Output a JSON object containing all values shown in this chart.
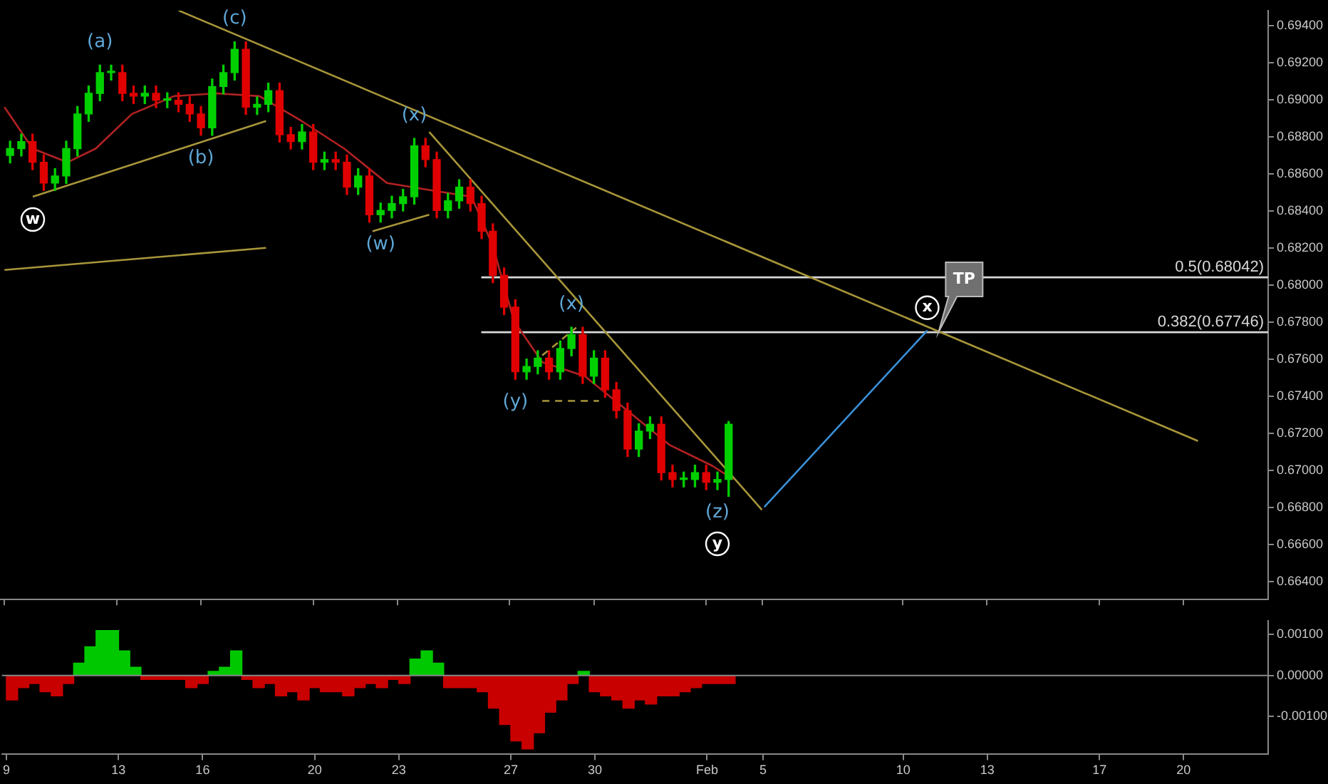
{
  "chart_data": [
    {
      "type": "candlestick",
      "x": [
        "--01-09T04:48",
        "--01-09T14:24",
        "--01-10T00:00",
        "--01-10T09:36",
        "--01-10T19:12",
        "--01-11T04:48",
        "--01-11T14:24",
        "--01-12T00:00",
        "--01-12T09:36",
        "--01-12T19:12",
        "--01-13T04:48",
        "--01-13T14:24",
        "--01-14T00:00",
        "--01-14T09:36",
        "--01-14T19:12",
        "--01-15T04:48",
        "--01-15T14:24",
        "--01-16T00:00",
        "--01-16T09:36",
        "--01-16T19:12",
        "--01-17T04:48",
        "--01-17T14:24",
        "--01-18T00:00",
        "--01-18T09:36",
        "--01-18T19:12",
        "--01-19T04:48",
        "--01-19T14:24",
        "--01-20T00:00",
        "--01-20T09:36",
        "--01-20T19:12",
        "--01-21T04:48",
        "--01-21T14:24",
        "--01-22T00:00",
        "--01-22T09:36",
        "--01-22T19:12",
        "--01-23T04:48",
        "--01-23T14:24",
        "--01-24T00:00",
        "--01-24T09:36",
        "--01-24T19:12",
        "--01-25T04:48",
        "--01-25T14:24",
        "--01-26T00:00",
        "--01-26T09:36",
        "--01-26T19:12",
        "--01-27T04:48",
        "--01-27T14:24",
        "--01-28T00:00",
        "--01-28T09:36",
        "--01-28T19:12",
        "--01-29T04:48",
        "--01-29T14:24",
        "--01-30T00:00",
        "--01-30T09:36",
        "--01-30T19:12",
        "--01-31T04:48",
        "--01-31T14:24",
        "--02-01T00:00",
        "--02-01T09:36",
        "--02-01T19:12",
        "--02-02T04:48",
        "--02-02T14:24",
        "--02-03T00:00",
        "--02-03T09:36",
        "--02-03T19:12"
      ],
      "ohlc": [
        [
          0.687,
          0.68777,
          0.6866,
          0.68737
        ],
        [
          0.68737,
          0.68815,
          0.68697,
          0.68775
        ],
        [
          0.68775,
          0.68815,
          0.68623,
          0.68663
        ],
        [
          0.68663,
          0.68703,
          0.68511,
          0.68551
        ],
        [
          0.68551,
          0.68629,
          0.68511,
          0.68589
        ],
        [
          0.68589,
          0.68777,
          0.68549,
          0.68737
        ],
        [
          0.68737,
          0.68964,
          0.68697,
          0.68924
        ],
        [
          0.68924,
          0.69075,
          0.68884,
          0.69035
        ],
        [
          0.69035,
          0.69187,
          0.68995,
          0.69147
        ],
        [
          0.69147,
          0.69187,
          0.69107,
          0.69147
        ],
        [
          0.69147,
          0.69187,
          0.68995,
          0.69035
        ],
        [
          0.69035,
          0.69075,
          0.6898,
          0.6902
        ],
        [
          0.6902,
          0.69075,
          0.6898,
          0.69035
        ],
        [
          0.69035,
          0.69075,
          0.68958,
          0.68998
        ],
        [
          0.68998,
          0.69038,
          0.68958,
          0.68998
        ],
        [
          0.68998,
          0.69038,
          0.68936,
          0.68976
        ],
        [
          0.68976,
          0.69016,
          0.68884,
          0.68924
        ],
        [
          0.68924,
          0.68964,
          0.68809,
          0.68849
        ],
        [
          0.68849,
          0.69112,
          0.68809,
          0.69072
        ],
        [
          0.69072,
          0.69187,
          0.69032,
          0.69147
        ],
        [
          0.69147,
          0.69313,
          0.69107,
          0.69273
        ],
        [
          0.69273,
          0.69313,
          0.68921,
          0.68961
        ],
        [
          0.68961,
          0.69016,
          0.68921,
          0.68976
        ],
        [
          0.68976,
          0.6909,
          0.68936,
          0.6905
        ],
        [
          0.6905,
          0.6909,
          0.68772,
          0.68812
        ],
        [
          0.68812,
          0.68852,
          0.68735,
          0.68775
        ],
        [
          0.68775,
          0.68867,
          0.68735,
          0.68827
        ],
        [
          0.68827,
          0.68867,
          0.68623,
          0.68663
        ],
        [
          0.68663,
          0.68718,
          0.68623,
          0.68678
        ],
        [
          0.68678,
          0.68718,
          0.68623,
          0.68663
        ],
        [
          0.68663,
          0.68703,
          0.68489,
          0.68529
        ],
        [
          0.68529,
          0.68629,
          0.68489,
          0.68589
        ],
        [
          0.68589,
          0.68629,
          0.6834,
          0.6838
        ],
        [
          0.6838,
          0.68443,
          0.6834,
          0.68403
        ],
        [
          0.68403,
          0.6848,
          0.68363,
          0.6844
        ],
        [
          0.6844,
          0.68517,
          0.684,
          0.68477
        ],
        [
          0.68477,
          0.68792,
          0.68437,
          0.68752
        ],
        [
          0.68752,
          0.68792,
          0.68638,
          0.68678
        ],
        [
          0.68678,
          0.68718,
          0.68363,
          0.68403
        ],
        [
          0.68403,
          0.68495,
          0.68363,
          0.68455
        ],
        [
          0.68455,
          0.68569,
          0.68415,
          0.68529
        ],
        [
          0.68529,
          0.68569,
          0.684,
          0.6844
        ],
        [
          0.6844,
          0.6848,
          0.68251,
          0.68291
        ],
        [
          0.68291,
          0.68331,
          0.68013,
          0.68053
        ],
        [
          0.68053,
          0.68093,
          0.67841,
          0.67881
        ],
        [
          0.67881,
          0.67921,
          0.67492,
          0.67532
        ],
        [
          0.67532,
          0.67601,
          0.67492,
          0.67561
        ],
        [
          0.67561,
          0.67646,
          0.67521,
          0.67606
        ],
        [
          0.67606,
          0.67646,
          0.67492,
          0.67532
        ],
        [
          0.67532,
          0.67698,
          0.67492,
          0.67658
        ],
        [
          0.67658,
          0.67773,
          0.67618,
          0.67733
        ],
        [
          0.67733,
          0.67773,
          0.67469,
          0.67509
        ],
        [
          0.67509,
          0.67646,
          0.67469,
          0.67606
        ],
        [
          0.67606,
          0.67646,
          0.67395,
          0.67435
        ],
        [
          0.67435,
          0.67475,
          0.67283,
          0.67323
        ],
        [
          0.67323,
          0.67363,
          0.67075,
          0.67115
        ],
        [
          0.67115,
          0.67252,
          0.67075,
          0.67212
        ],
        [
          0.67212,
          0.67289,
          0.67172,
          0.67249
        ],
        [
          0.67249,
          0.67289,
          0.66948,
          0.66988
        ],
        [
          0.66988,
          0.67028,
          0.66911,
          0.66951
        ],
        [
          0.66951,
          0.66991,
          0.66911,
          0.66951
        ],
        [
          0.66951,
          0.67028,
          0.66911,
          0.66988
        ],
        [
          0.66988,
          0.67028,
          0.66896,
          0.66936
        ],
        [
          0.66936,
          0.66991,
          0.66896,
          0.66951
        ],
        [
          0.66951,
          0.67264,
          0.6686,
          0.67249
        ]
      ],
      "series": [
        {
          "type": "line",
          "color": "#b22222",
          "x": [
            "--01-09T00:00",
            "--01-10T00:00",
            "--01-11T06:00",
            "--01-12T06:00",
            "--01-13T13:00",
            "--01-15T01:00",
            "--01-16T13:30",
            "--01-18T02:00",
            "--01-19T14:00",
            "--01-21T02:30",
            "--01-22T15:00",
            "--01-24T03:00",
            "--01-25T15:20",
            "--01-26T09:20",
            "--01-27T03:40",
            "--01-28T03:50",
            "--01-29T16:10",
            "--01-31T04:30",
            "--02-01T16:50",
            "--02-03T05:10",
            "--02-03T23:30"
          ],
          "values": [
            0.68961,
            0.68737,
            0.68663,
            0.68737,
            0.68924,
            0.6902,
            0.69035,
            0.6902,
            0.68886,
            0.68737,
            0.68551,
            0.68514,
            0.68477,
            0.68216,
            0.67807,
            0.67584,
            0.67509,
            0.67323,
            0.67137,
            0.67025,
            0.66951
          ]
        },
        {
          "type": "line",
          "color": "#a8963a",
          "x": [
            "--01-15T05:00",
            "--02-20T12:30"
          ],
          "values": [
            0.69482,
            0.67159
          ]
        },
        {
          "type": "line",
          "color": "#a8963a",
          "x": [
            "--01-10T00:12",
            "--01-18T07:40"
          ],
          "values": [
            0.68477,
            0.68886
          ]
        },
        {
          "type": "line",
          "color": "#a8963a",
          "x": [
            "--01-09T00:00",
            "--01-18T07:40"
          ],
          "values": [
            0.68082,
            0.68201
          ]
        },
        {
          "type": "line",
          "color": "#a8963a",
          "x": [
            "--01-22T02:40",
            "--01-24T03:10"
          ],
          "values": [
            0.68291,
            0.6838
          ]
        },
        {
          "type": "line",
          "color": "#a8963a",
          "x": [
            "--01-24T03:10",
            "--02-04T23:40"
          ],
          "values": [
            0.68827,
            0.66787
          ]
        },
        {
          "type": "line",
          "color": "#a8963a",
          "line_style": "dashed",
          "x": [
            "--01-28T03:50",
            "--01-30T04:20"
          ],
          "values": [
            0.67375,
            0.67375
          ]
        },
        {
          "type": "line",
          "color": "#a8963a",
          "line_style": "dashed",
          "x": [
            "--01-28T03:50",
            "--01-29T08:50"
          ],
          "values": [
            0.67621,
            0.6777
          ]
        },
        {
          "type": "line",
          "color": "#3a8fd6",
          "x": [
            "--02-05T01:40",
            "--02-10T21:00"
          ],
          "values": [
            0.66802,
            0.67755
          ]
        },
        {
          "type": "line",
          "name": "0.5(0.68042)",
          "color": "#d8d8d8",
          "x": [
            "--01-25T23:40",
            "--02-23T00:30"
          ],
          "values": [
            0.68042,
            0.68042
          ]
        },
        {
          "type": "line",
          "name": "0.382(0.67746)",
          "color": "#d8d8d8",
          "x": [
            "--01-25T23:40",
            "--02-23T00:30"
          ],
          "values": [
            0.67746,
            0.67746
          ]
        }
      ],
      "annotations": [
        {
          "text": "(a)",
          "x": "--01-12T09:36",
          "y": 0.69187
        },
        {
          "text": "(b)",
          "x": "--01-16T00:00",
          "y": 0.68809
        },
        {
          "text": "(c)",
          "x": "--01-17T04:48",
          "y": 0.69313
        },
        {
          "text": "(x)",
          "x": "--01-23T14:24",
          "y": 0.68792
        },
        {
          "text": "(w)",
          "x": "--01-22T09:36",
          "y": 0.6834
        },
        {
          "text": "(x)",
          "x": "--01-29T04:48",
          "y": 0.67773
        },
        {
          "text": "(y)",
          "x": "--01-27T04:48",
          "y": 0.67492
        },
        {
          "text": "(z)",
          "x": "--02-03T09:36",
          "y": 0.66896
        },
        {
          "text": "y",
          "x": "--02-03T09:36",
          "y": 0.66896
        },
        {
          "text": "w",
          "x": "--01-10T00:12",
          "y": 0.68477
        },
        {
          "text": "x",
          "x": "--02-10T21:00",
          "y": 0.67755
        },
        {
          "text": "TP",
          "x": "--02-11T06:40",
          "y": 0.67746
        }
      ],
      "xlim": [
        "--01-08T20:10",
        "--02-23T00:30"
      ],
      "xticks": [
        {
          "value": "--01-09",
          "label": "9"
        },
        {
          "value": "--01-13",
          "label": "13"
        },
        {
          "value": "--01-16",
          "label": "16"
        },
        {
          "value": "--01-20",
          "label": "20"
        },
        {
          "value": "--01-23",
          "label": "23"
        },
        {
          "value": "--01-27",
          "label": "27"
        },
        {
          "value": "--01-30",
          "label": "30"
        },
        {
          "value": "--02-03",
          "label": "Feb"
        },
        {
          "value": "--02-05",
          "label": "5"
        },
        {
          "value": "--02-10",
          "label": "10"
        },
        {
          "value": "--02-13",
          "label": "13"
        },
        {
          "value": "--02-17",
          "label": "17"
        },
        {
          "value": "--02-20",
          "label": "20"
        }
      ],
      "ylim": [
        0.66303,
        0.69482
      ],
      "yticks": [
        {
          "value": 0.664,
          "label": "0.66400"
        },
        {
          "value": 0.666,
          "label": "0.66600"
        },
        {
          "value": 0.668,
          "label": "0.66800"
        },
        {
          "value": 0.67,
          "label": "0.67000"
        },
        {
          "value": 0.672,
          "label": "0.67200"
        },
        {
          "value": 0.674,
          "label": "0.67400"
        },
        {
          "value": 0.676,
          "label": "0.67600"
        },
        {
          "value": 0.678,
          "label": "0.67800"
        },
        {
          "value": 0.68,
          "label": "0.68000"
        },
        {
          "value": 0.682,
          "label": "0.68200"
        },
        {
          "value": 0.684,
          "label": "0.68400"
        },
        {
          "value": 0.686,
          "label": "0.68600"
        },
        {
          "value": 0.688,
          "label": "0.68800"
        },
        {
          "value": 0.69,
          "label": "0.69000"
        },
        {
          "value": 0.692,
          "label": "0.69200"
        },
        {
          "value": 0.694,
          "label": "0.69400"
        }
      ],
      "tick_labels": "y",
      "legend": false
    },
    {
      "type": "bar",
      "x": [
        "--01-09T04:48",
        "--01-09T14:24",
        "--01-10T00:00",
        "--01-10T09:36",
        "--01-10T19:12",
        "--01-11T04:48",
        "--01-11T14:24",
        "--01-12T00:00",
        "--01-12T09:36",
        "--01-12T19:12",
        "--01-13T04:48",
        "--01-13T14:24",
        "--01-14T00:00",
        "--01-14T09:36",
        "--01-14T19:12",
        "--01-15T04:48",
        "--01-15T14:24",
        "--01-16T00:00",
        "--01-16T09:36",
        "--01-16T19:12",
        "--01-17T04:48",
        "--01-17T14:24",
        "--01-18T00:00",
        "--01-18T09:36",
        "--01-18T19:12",
        "--01-19T04:48",
        "--01-19T14:24",
        "--01-20T00:00",
        "--01-20T09:36",
        "--01-20T19:12",
        "--01-21T04:48",
        "--01-21T14:24",
        "--01-22T00:00",
        "--01-22T09:36",
        "--01-22T19:12",
        "--01-23T04:48",
        "--01-23T14:24",
        "--01-24T00:00",
        "--01-24T09:36",
        "--01-24T19:12",
        "--01-25T04:48",
        "--01-25T14:24",
        "--01-26T00:00",
        "--01-26T09:36",
        "--01-26T19:12",
        "--01-27T04:48",
        "--01-27T14:24",
        "--01-28T00:00",
        "--01-28T09:36",
        "--01-28T19:12",
        "--01-29T04:48",
        "--01-29T14:24",
        "--01-30T00:00",
        "--01-30T09:36",
        "--01-30T19:12",
        "--01-31T04:48",
        "--01-31T14:24",
        "--02-01T00:00",
        "--02-01T09:36",
        "--02-01T19:12",
        "--02-02T04:48",
        "--02-02T14:24",
        "--02-03T00:00",
        "--02-03T09:36",
        "--02-03T19:12"
      ],
      "values": [
        -0.0006,
        -0.0003,
        -0.0002,
        -0.0004,
        -0.0005,
        -0.0002,
        0.0003,
        0.0007,
        0.0011,
        0.0011,
        0.0006,
        0.0002,
        -0.0001,
        -0.0001,
        -0.0001,
        -0.0001,
        -0.0003,
        -0.0002,
        0.0001,
        0.0002,
        0.0006,
        -0.0001,
        -0.0003,
        -0.0002,
        -0.0005,
        -0.0004,
        -0.0006,
        -0.0003,
        -0.0004,
        -0.0004,
        -0.0005,
        -0.0003,
        -0.0002,
        -0.0003,
        -0.0001,
        -0.0002,
        0.0004,
        0.0006,
        0.0003,
        -0.0003,
        -0.0003,
        -0.0003,
        -0.0004,
        -0.0008,
        -0.0012,
        -0.0016,
        -0.0018,
        -0.0014,
        -0.0009,
        -0.0006,
        -0.0002,
        0.0001,
        -0.0004,
        -0.0005,
        -0.0006,
        -0.0008,
        -0.0006,
        -0.0007,
        -0.0005,
        -0.0005,
        -0.0004,
        -0.0003,
        -0.0002,
        -0.0002,
        -0.0002
      ],
      "colors": [
        "#c80000",
        "#c80000",
        "#c80000",
        "#c80000",
        "#c80000",
        "#c80000",
        "#00c800",
        "#00c800",
        "#00c800",
        "#00c800",
        "#00c800",
        "#00c800",
        "#c80000",
        "#c80000",
        "#c80000",
        "#c80000",
        "#c80000",
        "#c80000",
        "#00c800",
        "#00c800",
        "#00c800",
        "#c80000",
        "#c80000",
        "#c80000",
        "#c80000",
        "#c80000",
        "#c80000",
        "#c80000",
        "#c80000",
        "#c80000",
        "#c80000",
        "#c80000",
        "#c80000",
        "#c80000",
        "#c80000",
        "#c80000",
        "#00c800",
        "#00c800",
        "#00c800",
        "#c80000",
        "#c80000",
        "#c80000",
        "#c80000",
        "#c80000",
        "#c80000",
        "#c80000",
        "#c80000",
        "#c80000",
        "#c80000",
        "#c80000",
        "#c80000",
        "#00c800",
        "#c80000",
        "#c80000",
        "#c80000",
        "#c80000",
        "#c80000",
        "#c80000",
        "#c80000",
        "#c80000",
        "#c80000",
        "#c80000",
        "#c80000",
        "#c80000",
        "#c80000"
      ],
      "ref_lines": [
        {
          "axis": "y",
          "value": 0,
          "color": "#888888"
        }
      ],
      "xlim": [
        "--01-08T20:10",
        "--02-23T00:30"
      ],
      "xticks": [
        {
          "value": "--01-09",
          "label": "9"
        },
        {
          "value": "--01-13",
          "label": "13"
        },
        {
          "value": "--01-16",
          "label": "16"
        },
        {
          "value": "--01-20",
          "label": "20"
        },
        {
          "value": "--01-23",
          "label": "23"
        },
        {
          "value": "--01-27",
          "label": "27"
        },
        {
          "value": "--01-30",
          "label": "30"
        },
        {
          "value": "--02-03",
          "label": "Feb"
        },
        {
          "value": "--02-05",
          "label": "5"
        },
        {
          "value": "--02-10",
          "label": "10"
        },
        {
          "value": "--02-13",
          "label": "13"
        },
        {
          "value": "--02-17",
          "label": "17"
        },
        {
          "value": "--02-20",
          "label": "20"
        }
      ],
      "ylim": [
        -0.00193,
        0.00134
      ],
      "yticks": [
        {
          "value": 0.001,
          "label": "0.00100"
        },
        {
          "value": 0,
          "label": "0.00000"
        },
        {
          "value": -0.001,
          "label": "-0.00100"
        }
      ],
      "legend": false
    }
  ]
}
